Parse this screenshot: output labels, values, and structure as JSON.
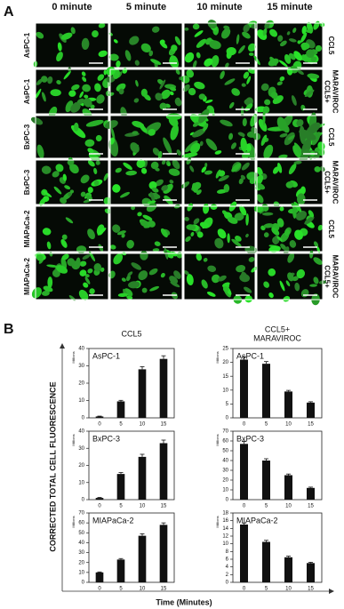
{
  "panel_a": {
    "label": "A",
    "column_headers": [
      "0 minute",
      "5 minute",
      "10 minute",
      "15 minute"
    ],
    "rows": [
      {
        "cell_line": "AsPC-1",
        "treatment": [
          "CCL5"
        ]
      },
      {
        "cell_line": "AsPC-1",
        "treatment": [
          "CCL5+",
          "MARAVIROC"
        ]
      },
      {
        "cell_line": "BxPC-3",
        "treatment": [
          "CCL5"
        ]
      },
      {
        "cell_line": "BxPC-3",
        "treatment": [
          "CCL5+",
          "MARAVIROC"
        ]
      },
      {
        "cell_line": "MIAPaCa-2",
        "treatment": [
          "CCL5"
        ]
      },
      {
        "cell_line": "MIAPaCa-2",
        "treatment": [
          "CCL5+",
          "MARAVIROC"
        ]
      }
    ]
  },
  "panel_b": {
    "label": "B",
    "column_titles": [
      [
        "CCL5"
      ],
      [
        "CCL5+",
        "MARAVIROC"
      ]
    ],
    "ylabel": "CORRECTED TOTAL CELL FLUORESCENCE",
    "xlabel": "Time (Minutes)"
  },
  "chart_data": [
    {
      "type": "bar",
      "title": "AsPC-1",
      "categories": [
        "0",
        "5",
        "10",
        "15"
      ],
      "values": [
        0.8,
        9.5,
        28,
        34
      ],
      "errors": [
        0.2,
        0.6,
        1.5,
        1.8
      ],
      "ylim": [
        0,
        40
      ],
      "yticks": [
        0,
        10,
        20,
        30,
        40
      ],
      "ylabel": "Millions",
      "color": "#111111"
    },
    {
      "type": "bar",
      "title": "AsPC-1",
      "categories": [
        "0",
        "5",
        "10",
        "15"
      ],
      "values": [
        21,
        19.5,
        9.5,
        5.5
      ],
      "errors": [
        1,
        0.8,
        0.4,
        0.3
      ],
      "ylim": [
        0,
        25
      ],
      "yticks": [
        0,
        5,
        10,
        15,
        20,
        25
      ],
      "ylabel": "Millions",
      "color": "#111111"
    },
    {
      "type": "bar",
      "title": "BxPC-3",
      "categories": [
        "0",
        "5",
        "10",
        "15"
      ],
      "values": [
        1,
        15,
        25,
        33
      ],
      "errors": [
        0.3,
        0.8,
        1.5,
        1.8
      ],
      "ylim": [
        0,
        40
      ],
      "yticks": [
        0,
        10,
        20,
        30,
        40
      ],
      "ylabel": "Millions",
      "color": "#111111"
    },
    {
      "type": "bar",
      "title": "BxPC-3",
      "categories": [
        "0",
        "5",
        "10",
        "15"
      ],
      "values": [
        57,
        40,
        25,
        12
      ],
      "errors": [
        2.5,
        1.8,
        1.2,
        0.8
      ],
      "ylim": [
        0,
        70
      ],
      "yticks": [
        0,
        10,
        20,
        30,
        40,
        50,
        60,
        70
      ],
      "ylabel": "Millions",
      "color": "#111111"
    },
    {
      "type": "bar",
      "title": "MIAPaCa-2",
      "categories": [
        "0",
        "5",
        "10",
        "15"
      ],
      "values": [
        10,
        23,
        47,
        58
      ],
      "errors": [
        0.5,
        1,
        2,
        2
      ],
      "ylim": [
        0,
        70
      ],
      "yticks": [
        0,
        10,
        20,
        30,
        40,
        50,
        60,
        70
      ],
      "ylabel": "Millions",
      "color": "#111111"
    },
    {
      "type": "bar",
      "title": "MIAPaCa-2",
      "categories": [
        "0",
        "5",
        "10",
        "15"
      ],
      "values": [
        15,
        10.5,
        6.5,
        5
      ],
      "errors": [
        0.4,
        0.4,
        0.3,
        0.2
      ],
      "ylim": [
        0,
        18
      ],
      "yticks": [
        0,
        2,
        4,
        6,
        8,
        10,
        12,
        14,
        16,
        18
      ],
      "ylabel": "Millions",
      "color": "#111111"
    }
  ]
}
